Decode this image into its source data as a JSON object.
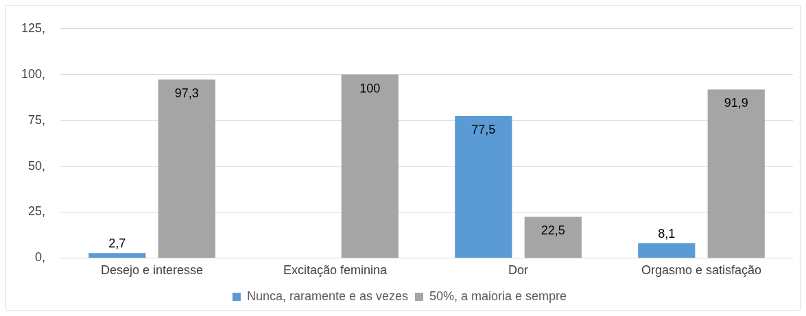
{
  "chart_data": {
    "type": "bar",
    "categories": [
      "Desejo e interesse",
      "Excitação feminina",
      "Dor",
      "Orgasmo e satisfação"
    ],
    "series": [
      {
        "name": "Nunca, raramente e as vezes",
        "color": "#5b9bd5",
        "values": [
          2.7,
          null,
          77.5,
          8.1
        ],
        "value_labels": [
          "2,7",
          null,
          "77,5",
          "8,1"
        ]
      },
      {
        "name": "50%, a maioria e sempre",
        "color": "#a5a5a5",
        "values": [
          97.3,
          100,
          22.5,
          91.9
        ],
        "value_labels": [
          "97,3",
          "100",
          "22,5",
          "91,9"
        ]
      }
    ],
    "ylim": [
      0,
      125
    ],
    "yticks": [
      {
        "value": 0,
        "label": "0,"
      },
      {
        "value": 25,
        "label": "25,"
      },
      {
        "value": 50,
        "label": "50,"
      },
      {
        "value": 75,
        "label": "75,"
      },
      {
        "value": 100,
        "label": "100,"
      },
      {
        "value": 125,
        "label": "125,"
      }
    ],
    "grid": "y",
    "legend": "bottom"
  }
}
